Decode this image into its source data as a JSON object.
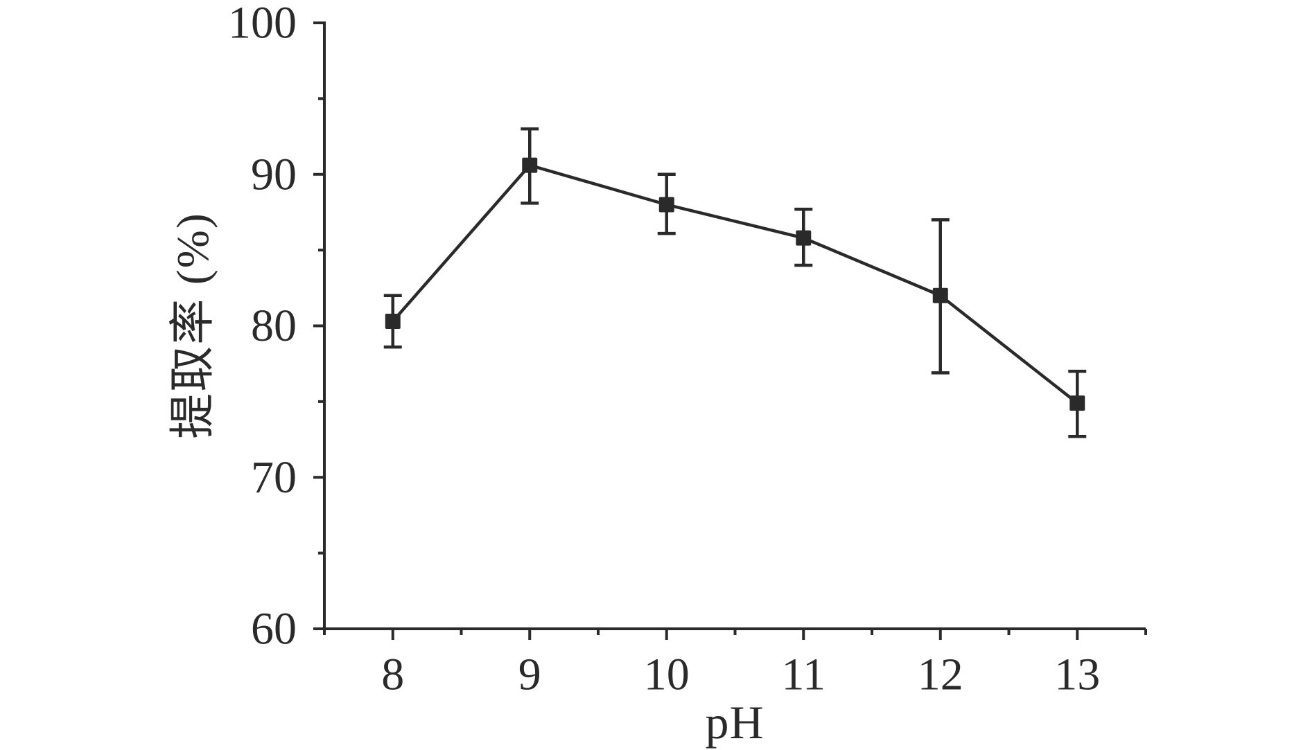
{
  "figure": {
    "background_color": "#ffffff",
    "ink_color": "#2a2a2a"
  },
  "chart_data": {
    "type": "line",
    "title": "",
    "xlabel": "pH",
    "ylabel": "提取率 (%)",
    "x": [
      8,
      9,
      10,
      11,
      12,
      13
    ],
    "series": [
      {
        "name": "提取率",
        "values": [
          80.3,
          90.6,
          88.0,
          85.8,
          82.0,
          74.9
        ],
        "err_up": [
          1.7,
          2.4,
          2.0,
          1.9,
          5.0,
          2.1
        ],
        "err_down": [
          1.7,
          2.5,
          1.9,
          1.8,
          5.1,
          2.2
        ],
        "marker": "filled-square",
        "color": "#2a2a2a"
      }
    ],
    "xlim": [
      7.5,
      13.5
    ],
    "ylim": [
      60,
      100
    ],
    "x_major_ticks": [
      8,
      9,
      10,
      11,
      12,
      13
    ],
    "x_minor_ticks": [
      7.5,
      8.5,
      9.5,
      10.5,
      11.5,
      12.5,
      13.5
    ],
    "y_major_ticks": [
      60,
      70,
      80,
      90,
      100
    ],
    "y_minor_ticks": [
      65,
      75,
      85,
      95
    ],
    "x_tick_labels": [
      "8",
      "9",
      "10",
      "11",
      "12",
      "13"
    ],
    "y_tick_labels": [
      "60",
      "70",
      "80",
      "90",
      "100"
    ],
    "grid": false,
    "legend": "none",
    "axes_shown": [
      "left",
      "bottom"
    ],
    "tick_direction": "out"
  }
}
